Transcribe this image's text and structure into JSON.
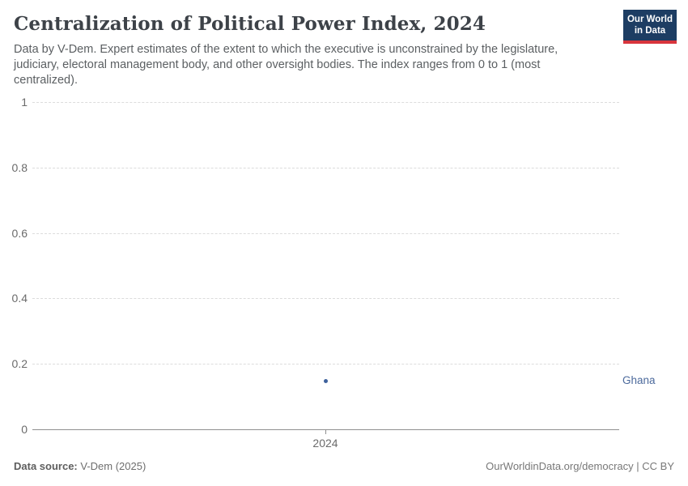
{
  "header": {
    "title": "Centralization of Political Power Index, 2024",
    "subtitle": "Data by V-Dem. Expert estimates of the extent to which the executive is unconstrained by the legislature, judiciary, electoral management body, and other oversight bodies. The index ranges from 0 to 1 (most centralized).",
    "logo_line1": "Our World",
    "logo_line2": "in Data"
  },
  "chart_data": {
    "type": "scatter",
    "title": "Centralization of Political Power Index, 2024",
    "x": [
      2024
    ],
    "xtick_labels": [
      "2024"
    ],
    "series": [
      {
        "name": "Ghana",
        "values": [
          0.15
        ],
        "color": "#3d619c"
      }
    ],
    "entity_label": "Ghana",
    "entity_label_color": "#4c6a9c",
    "xlabel": "",
    "ylabel": "",
    "ylim": [
      0,
      1
    ],
    "yticks": [
      0,
      0.2,
      0.4,
      0.6,
      0.8,
      1
    ],
    "ytick_labels": [
      "0",
      "0.2",
      "0.4",
      "0.6",
      "0.8",
      "1"
    ],
    "grid": true,
    "gridline_style": "dashed",
    "legend_position": "right-of-point"
  },
  "footer": {
    "datasource_label": "Data source:",
    "datasource_value": "V-Dem (2025)",
    "credit": "OurWorldinData.org/democracy | CC BY"
  },
  "colors": {
    "title_text": "#3d4248",
    "subtitle_text": "#5b5f62",
    "logo_background": "#1d3d63",
    "logo_stripe": "#d8353c",
    "gridline": "#dcdcdc",
    "axis_line": "#8f8f8f",
    "tick_label": "#6b6b6b",
    "point": "#3d619c",
    "entity_label": "#4c6a9c"
  }
}
